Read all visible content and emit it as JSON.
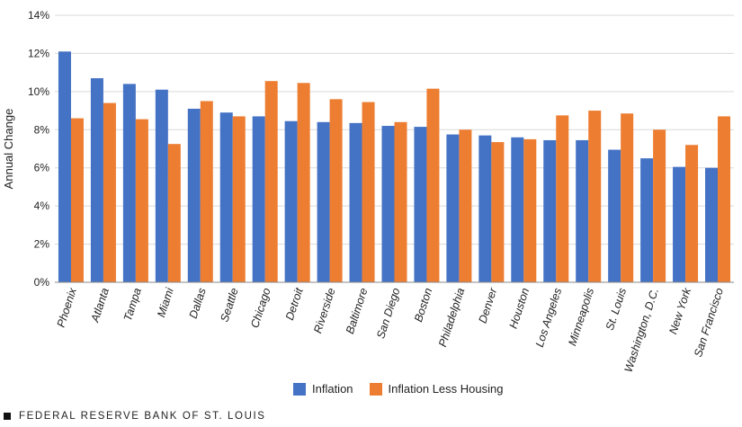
{
  "chart_data": {
    "type": "bar",
    "ylabel": "Annual Change",
    "xlabel": "",
    "ylim": [
      0,
      14
    ],
    "yticks": [
      0,
      2,
      4,
      6,
      8,
      10,
      12,
      14
    ],
    "ytick_labels": [
      "0%",
      "2%",
      "4%",
      "6%",
      "8%",
      "10%",
      "12%",
      "14%"
    ],
    "grid": true,
    "legend_position": "bottom-center",
    "categories": [
      "Phoenix",
      "Atlanta",
      "Tampa",
      "Miami",
      "Dallas",
      "Seattle",
      "Chicago",
      "Detroit",
      "Riverside",
      "Baltimore",
      "San Diego",
      "Boston",
      "Philadelphia",
      "Denver",
      "Houston",
      "Los Angeles",
      "Minneapolis",
      "St. Louis",
      "Washington, D.C.",
      "New York",
      "San Francisco"
    ],
    "series": [
      {
        "name": "Inflation",
        "color": "#4472c4",
        "values": [
          12.1,
          10.7,
          10.4,
          10.1,
          9.1,
          8.9,
          8.7,
          8.45,
          8.4,
          8.35,
          8.2,
          8.15,
          7.75,
          7.7,
          7.6,
          7.45,
          7.45,
          6.95,
          6.5,
          6.05,
          6.0
        ]
      },
      {
        "name": "Inflation Less Housing",
        "color": "#ed7d31",
        "values": [
          8.6,
          9.4,
          8.55,
          7.25,
          9.5,
          8.7,
          10.55,
          10.45,
          9.6,
          9.45,
          8.4,
          10.15,
          8.0,
          7.35,
          7.5,
          8.75,
          9.0,
          8.85,
          8.0,
          7.2,
          8.7
        ]
      }
    ]
  },
  "footer": {
    "text": "FEDERAL RESERVE BANK OF ST. LOUIS"
  }
}
